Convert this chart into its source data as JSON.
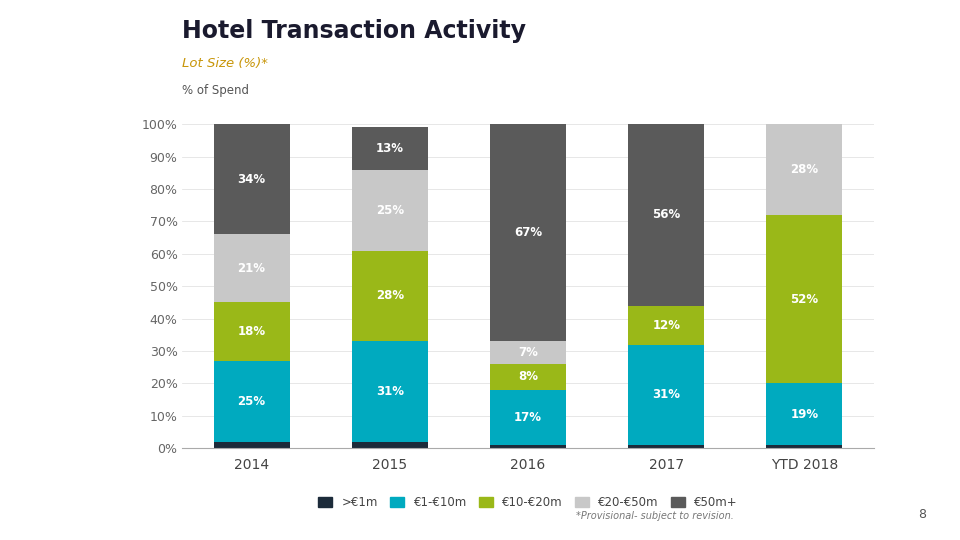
{
  "title": "Hotel Transaction Activity",
  "subtitle": "Lot Size (%)*",
  "ylabel": "% of Spend",
  "categories": [
    "2014",
    "2015",
    "2016",
    "2017",
    "YTD 2018"
  ],
  "series": {
    "gt1m": [
      2,
      2,
      1,
      1,
      1
    ],
    "e1_10m": [
      25,
      31,
      17,
      31,
      19
    ],
    "e10_20m": [
      18,
      28,
      8,
      12,
      52
    ],
    "e20_50m": [
      21,
      25,
      7,
      0,
      28
    ],
    "e50m": [
      34,
      13,
      67,
      56,
      0
    ]
  },
  "labels": {
    "gt1m": [
      "",
      "",
      "",
      "",
      ""
    ],
    "e1_10m": [
      "25%",
      "31%",
      "17%",
      "31%",
      "19%"
    ],
    "e10_20m": [
      "18%",
      "28%",
      "8%",
      "12%",
      "52%"
    ],
    "e20_50m": [
      "21%",
      "25%",
      "7%",
      "",
      "28%"
    ],
    "e50m": [
      "34%",
      "13%",
      "67%",
      "56%",
      ""
    ]
  },
  "colors": {
    "gt1m": "#1c2b3a",
    "e1_10m": "#00aabf",
    "e10_20m": "#9ab818",
    "e20_50m": "#c8c8c8",
    "e50m": "#5a5a5a"
  },
  "legend_labels": {
    "gt1m": ">€1m",
    "e1_10m": "€1-€10m",
    "e10_20m": "€10-€20m",
    "e20_50m": "€20-€50m",
    "e50m": "€50m+"
  },
  "footnote": "*Provisional- subject to revision.",
  "page_number": "8",
  "background_color": "#ffffff",
  "plot_bg_color": "#ffffff",
  "title_color": "#1a1a2e",
  "subtitle_color": "#c8960a",
  "ylabel_color": "#555555",
  "bar_width": 0.55,
  "figsize": [
    9.6,
    5.4
  ],
  "dpi": 100
}
